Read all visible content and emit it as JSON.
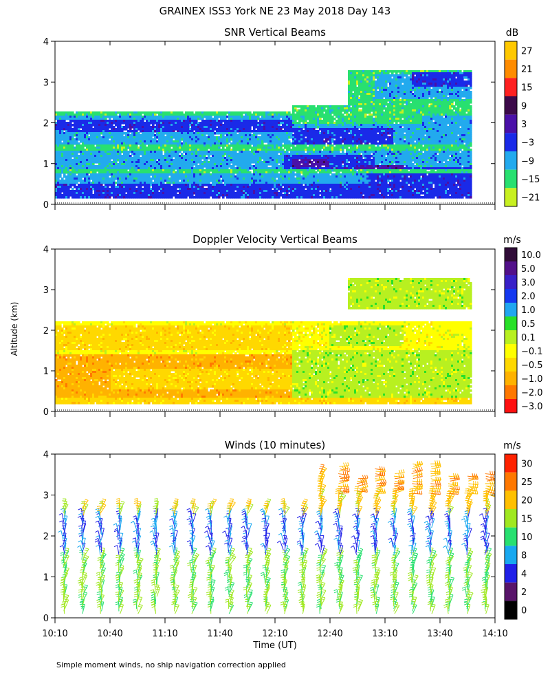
{
  "figure": {
    "title": "GRAINEX ISS3 York NE  23 May 2018 Day 143",
    "ylabel": "Altitude (km)",
    "xlabel": "Time (UT)",
    "footnote": "Simple moment winds, no ship navigation correction applied"
  },
  "chart_data": [
    {
      "type": "heatmap",
      "title": "SNR Vertical Beams",
      "colorbar_unit": "dB",
      "colorbar_labels": [
        "27",
        "21",
        "15",
        "9",
        "3",
        "−3",
        "−9",
        "−15",
        "−21"
      ],
      "colors": [
        "#ffc800",
        "#ff8c00",
        "#ff2020",
        "#3c0a4a",
        "#4a10a8",
        "#1a2ae8",
        "#22aaee",
        "#28e070",
        "#c8f020"
      ],
      "y_ticks": [
        "0",
        "1",
        "2",
        "3",
        "4"
      ],
      "ylim": [
        0,
        4
      ],
      "xlim": [
        "10:10",
        "14:10"
      ],
      "layers": [
        {
          "t0": 0,
          "t1": 228,
          "z0": 0.15,
          "z1": 2.3,
          "cls": 7
        },
        {
          "t0": 0,
          "t1": 228,
          "z0": 0.15,
          "z1": 2.2,
          "cls": 6
        },
        {
          "t0": 0,
          "t1": 130,
          "z0": 1.75,
          "z1": 2.1,
          "cls": 5
        },
        {
          "t0": 130,
          "t1": 185,
          "z0": 1.3,
          "z1": 1.85,
          "cls": 5
        },
        {
          "t0": 0,
          "t1": 228,
          "z0": 0.15,
          "z1": 0.5,
          "cls": 5
        },
        {
          "t0": 170,
          "t1": 228,
          "z0": 0.15,
          "z1": 0.9,
          "cls": 5
        },
        {
          "t0": 125,
          "t1": 175,
          "z0": 0.8,
          "z1": 1.2,
          "cls": 5
        },
        {
          "t0": 130,
          "t1": 150,
          "z0": 0.9,
          "z1": 1.1,
          "cls": 4
        },
        {
          "t0": 165,
          "t1": 190,
          "z0": 0.8,
          "z1": 0.95,
          "cls": 4
        },
        {
          "t0": 160,
          "t1": 228,
          "z0": 2.3,
          "z1": 3.3,
          "cls": 7
        },
        {
          "t0": 175,
          "t1": 228,
          "z0": 2.6,
          "z1": 3.2,
          "cls": 6
        },
        {
          "t0": 195,
          "t1": 228,
          "z0": 2.9,
          "z1": 3.25,
          "cls": 5
        },
        {
          "t0": 130,
          "t1": 200,
          "z0": 2.0,
          "z1": 2.45,
          "cls": 7
        },
        {
          "t0": 0,
          "t1": 228,
          "z0": 1.3,
          "z1": 1.45,
          "cls": 7
        },
        {
          "t0": 0,
          "t1": 228,
          "z0": 0.75,
          "z1": 0.85,
          "cls": 7
        }
      ]
    },
    {
      "type": "heatmap",
      "title": "Doppler Velocity Vertical Beams",
      "colorbar_unit": "m/s",
      "colorbar_labels": [
        "10.0",
        "5.0",
        "3.0",
        "2.0",
        "1.0",
        "0.5",
        "0.1",
        "−0.1",
        "−0.5",
        "−1.0",
        "−2.0",
        "−3.0"
      ],
      "colors": [
        "#300c38",
        "#52108a",
        "#3820c8",
        "#1438f0",
        "#20a6f0",
        "#28e028",
        "#b8f020",
        "#ffff00",
        "#ffd800",
        "#ffb200",
        "#ff7800",
        "#ff1010"
      ],
      "y_ticks": [
        "0",
        "1",
        "2",
        "3",
        "4"
      ],
      "ylim": [
        0,
        4
      ],
      "xlim": [
        "10:10",
        "14:10"
      ],
      "layers": [
        {
          "t0": 0,
          "t1": 228,
          "z0": 0.15,
          "z1": 2.2,
          "cls": 7
        },
        {
          "t0": 0,
          "t1": 130,
          "z0": 0.3,
          "z1": 1.4,
          "cls": 9
        },
        {
          "t0": 30,
          "t1": 140,
          "z0": 0.5,
          "z1": 1.0,
          "cls": 8
        },
        {
          "t0": 130,
          "t1": 228,
          "z0": 0.2,
          "z1": 1.5,
          "cls": 6
        },
        {
          "t0": 160,
          "t1": 228,
          "z0": 2.5,
          "z1": 3.3,
          "cls": 6
        },
        {
          "t0": 0,
          "t1": 228,
          "z0": 0.15,
          "z1": 0.3,
          "cls": 8
        },
        {
          "t0": 0,
          "t1": 130,
          "z0": 1.5,
          "z1": 2.1,
          "cls": 8
        },
        {
          "t0": 150,
          "t1": 190,
          "z0": 1.6,
          "z1": 2.1,
          "cls": 6
        }
      ]
    },
    {
      "type": "wind_barbs",
      "title": "Winds (10 minutes)",
      "colorbar_unit": "m/s",
      "colorbar_labels": [
        "30",
        "25",
        "20",
        "15",
        "10",
        "8",
        "4",
        "2",
        "0"
      ],
      "colors": [
        "#ff2200",
        "#ff7800",
        "#ffc000",
        "#a0e820",
        "#28e070",
        "#18a8f0",
        "#2020e8",
        "#58146a",
        "#000000"
      ],
      "y_ticks": [
        "0",
        "1",
        "2",
        "3",
        "4"
      ],
      "ylim": [
        0,
        4
      ],
      "x_ticks": [
        "10:10",
        "10:40",
        "11:10",
        "11:40",
        "12:10",
        "12:40",
        "13:10",
        "13:40",
        "14:10"
      ],
      "xlim": [
        "10:10",
        "14:10"
      ],
      "profile_interval_min": 10,
      "jets": [
        {
          "t0": 0,
          "t1": 240,
          "z0": 1.5,
          "z1": 2.5,
          "dir": 180,
          "speed": 8
        },
        {
          "t0": 150,
          "t1": 240,
          "z0": 3.0,
          "z1": 4.0,
          "dir": 270,
          "speed": 25
        }
      ]
    }
  ]
}
